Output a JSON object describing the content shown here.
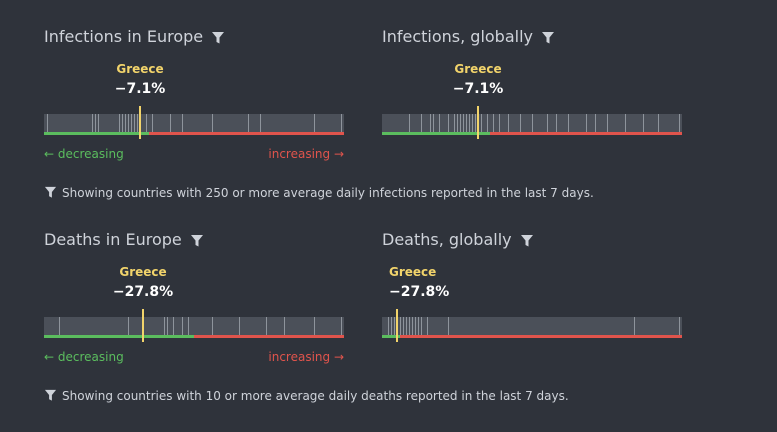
{
  "panels": [
    {
      "id": "infections-europe",
      "title": "Infections in Europe",
      "marker": {
        "country": "Greece",
        "value": "−7.1%",
        "fraction": 0.32
      },
      "split": 0.35,
      "ticks": [
        0.01,
        0.16,
        0.17,
        0.18,
        0.25,
        0.26,
        0.27,
        0.28,
        0.29,
        0.3,
        0.31,
        0.32,
        0.34,
        0.36,
        0.42,
        0.46,
        0.56,
        0.68,
        0.72,
        0.9,
        0.99
      ],
      "show_legend": true
    },
    {
      "id": "infections-global",
      "title": "Infections, globally",
      "marker": {
        "country": "Greece",
        "value": "−7.1%",
        "fraction": 0.32
      },
      "split": 0.36,
      "ticks": [
        0.09,
        0.13,
        0.16,
        0.17,
        0.19,
        0.22,
        0.24,
        0.25,
        0.26,
        0.27,
        0.28,
        0.29,
        0.3,
        0.31,
        0.32,
        0.33,
        0.35,
        0.37,
        0.39,
        0.42,
        0.46,
        0.5,
        0.55,
        0.58,
        0.62,
        0.68,
        0.71,
        0.75,
        0.81,
        0.87,
        0.92,
        0.99
      ],
      "show_legend": false
    },
    {
      "id": "deaths-europe",
      "title": "Deaths in Europe",
      "marker": {
        "country": "Greece",
        "value": "−27.8%",
        "fraction": 0.33
      },
      "split": 0.5,
      "ticks": [
        0.05,
        0.28,
        0.4,
        0.41,
        0.43,
        0.46,
        0.48,
        0.56,
        0.65,
        0.74,
        0.8,
        0.9,
        0.99
      ],
      "show_legend": true
    },
    {
      "id": "deaths-global",
      "title": "Deaths, globally",
      "marker": {
        "country": "Greece",
        "value": "−27.8%",
        "fraction": 0.05
      },
      "split": 0.06,
      "ticks": [
        0.02,
        0.03,
        0.04,
        0.05,
        0.06,
        0.07,
        0.08,
        0.09,
        0.1,
        0.11,
        0.12,
        0.13,
        0.15,
        0.22,
        0.84,
        0.99
      ],
      "show_legend": false
    }
  ],
  "legend": {
    "decreasing": "← decreasing",
    "increasing": "increasing →"
  },
  "notes": {
    "infections": "Showing countries with 250 or more average daily infections reported in the last 7 days.",
    "deaths": "Showing countries with 10 or more average daily deaths reported in the last 7 days."
  },
  "colors": {
    "marker": "#f2d46b",
    "green": "#5bbd5e",
    "red": "#e0544c"
  }
}
